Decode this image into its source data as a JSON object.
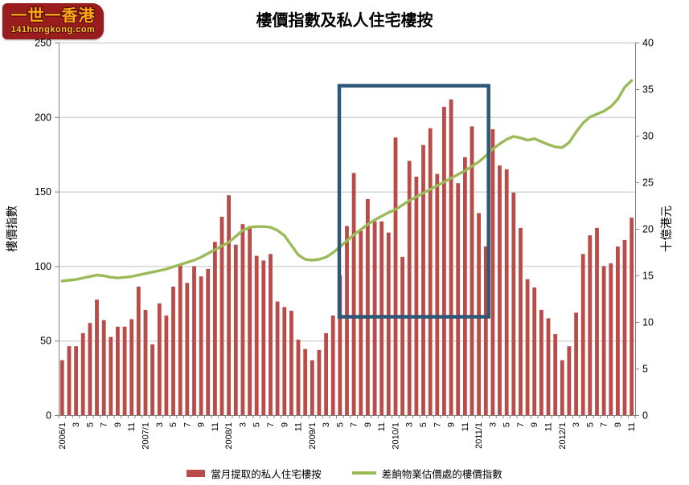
{
  "logo": {
    "line1": "一世一香港",
    "line2": "141hongkong.com"
  },
  "title": "樓價指數及私人住宅樓按",
  "legend": [
    {
      "type": "bar",
      "color": "#b94b48",
      "label": "當月提取的私人住宅樓按"
    },
    {
      "type": "line",
      "color": "#9bbb59",
      "label": "差餉物業估價處的樓價指數"
    }
  ],
  "chart_data": {
    "type": "bar",
    "subtype": "bar+line combo, monthly categories",
    "title": "樓價指數及私人住宅樓按",
    "x_start": "2006/1",
    "x_end": "2012/11",
    "n_months": 83,
    "x_tick_labels": [
      "2006/1",
      "3",
      "5",
      "7",
      "9",
      "11",
      "2007/1",
      "3",
      "5",
      "7",
      "9",
      "11",
      "2008/1",
      "3",
      "5",
      "7",
      "9",
      "11",
      "2009/1",
      "3",
      "5",
      "7",
      "9",
      "11",
      "2010/1",
      "3",
      "5",
      "7",
      "9",
      "11",
      "2011/1",
      "3",
      "5",
      "7",
      "9",
      "11",
      "2012/1",
      "3",
      "5",
      "7",
      "9",
      "11"
    ],
    "left_axis": {
      "title": "樓價指數",
      "min": 0,
      "max": 250,
      "step": 50,
      "tick_labels": [
        "0",
        "50",
        "100",
        "150",
        "200",
        "250"
      ]
    },
    "right_axis": {
      "title": "十億港元",
      "min": 0,
      "max": 40,
      "step": 5,
      "tick_labels": [
        "0",
        "5",
        "10",
        "15",
        "20",
        "25",
        "30",
        "35",
        "40"
      ]
    },
    "grid": "horizontal lines every 50 index units",
    "legend_position": "bottom center",
    "series": [
      {
        "name": "當月提取的私人住宅樓按",
        "type": "bar",
        "axis": "right",
        "unit": "十億港元",
        "color": "#b94b48",
        "values": [
          5.9,
          7.4,
          7.4,
          8.8,
          9.9,
          12.4,
          10.2,
          8.4,
          9.5,
          9.5,
          10.3,
          13.8,
          11.3,
          7.6,
          12.0,
          10.7,
          13.8,
          16.1,
          14.2,
          16.0,
          14.9,
          15.7,
          18.6,
          21.3,
          23.6,
          18.3,
          20.5,
          20.3,
          17.1,
          16.6,
          17.3,
          12.2,
          11.6,
          11.2,
          8.1,
          7.1,
          5.9,
          7.0,
          8.8,
          10.7,
          15.0,
          20.3,
          26.0,
          19.8,
          23.2,
          20.8,
          20.8,
          19.6,
          29.8,
          17.0,
          27.3,
          25.6,
          29.0,
          30.8,
          25.9,
          33.1,
          33.9,
          24.9,
          27.7,
          31.0,
          21.7,
          18.1,
          30.7,
          26.8,
          26.4,
          23.9,
          20.1,
          14.6,
          13.7,
          11.3,
          10.4,
          8.7,
          5.9,
          7.4,
          11.0,
          17.3,
          19.3,
          20.1,
          16.0,
          16.3,
          18.1,
          18.8,
          21.2
        ]
      },
      {
        "name": "差餉物業估價處的樓價指數",
        "type": "line",
        "axis": "left",
        "unit": "指數",
        "color": "#9bbb59",
        "values": [
          90,
          90.5,
          91,
          92,
          93,
          94,
          93.5,
          92.5,
          92,
          92.5,
          93,
          94,
          95,
          96,
          97,
          98,
          99.5,
          101,
          102.5,
          104,
          106,
          108.5,
          111,
          113.5,
          116,
          120,
          124,
          126,
          126.5,
          126.5,
          126,
          124,
          120.5,
          114,
          107.5,
          104.5,
          104,
          104.5,
          106,
          109,
          113,
          117,
          121,
          124.5,
          128,
          131,
          133.5,
          136,
          138,
          141,
          144,
          146.5,
          149,
          151.5,
          154,
          156.5,
          159,
          161.5,
          164,
          167,
          170,
          174,
          178.5,
          182,
          185,
          187,
          186,
          184.5,
          185.5,
          183.5,
          181.5,
          180,
          179.5,
          183,
          190,
          196,
          200,
          202,
          204,
          207,
          212,
          220,
          224.5
        ]
      }
    ],
    "highlight_box": {
      "from_month": "2009/5",
      "to_month": "2011/2",
      "top_index_value": 221,
      "bottom_index_value": 66,
      "color": "#2f5878",
      "stroke_width": 4.5
    }
  }
}
